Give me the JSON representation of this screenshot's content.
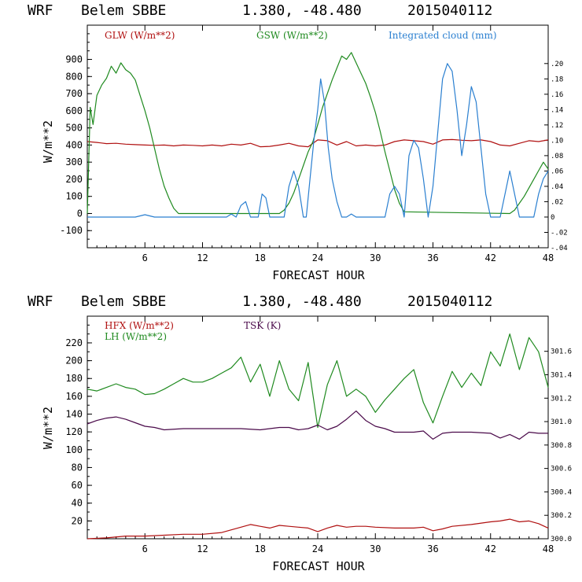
{
  "colors": {
    "red": "#b01010",
    "green": "#1f8a1f",
    "blue": "#2a7fd0",
    "purple": "#4a0a4a",
    "black": "#000000"
  },
  "chart_data": [
    {
      "type": "line",
      "header": {
        "model": "WRF",
        "station": "Belem SBBE",
        "coords": "1.380, -48.480",
        "run": "2015040112"
      },
      "xlabel": "FORECAST HOUR",
      "ylabel": "W/m**2",
      "xlim": [
        0,
        48
      ],
      "ylim": [
        -200,
        1100
      ],
      "y2lim": [
        -0.04,
        0.25
      ],
      "x_ticks": [
        "6",
        "12",
        "18",
        "24",
        "30",
        "36",
        "42",
        "48"
      ],
      "y_ticks": [
        "-100",
        "0",
        "100",
        "200",
        "300",
        "400",
        "500",
        "600",
        "700",
        "800",
        "900"
      ],
      "y2_ticks": [
        "-.04",
        "-.02",
        "0",
        ".02",
        ".04",
        ".06",
        ".08",
        ".10",
        ".12",
        ".14",
        ".16",
        ".18",
        ".20"
      ],
      "series": [
        {
          "name": "GLW (W/m**2)",
          "color": "red",
          "axis": "left",
          "x": [
            0,
            1,
            2,
            3,
            4,
            5,
            6,
            7,
            8,
            9,
            10,
            11,
            12,
            13,
            14,
            15,
            16,
            17,
            18,
            19,
            20,
            21,
            22,
            23,
            24,
            25,
            26,
            27,
            28,
            29,
            30,
            31,
            32,
            33,
            34,
            35,
            36,
            37,
            38,
            39,
            40,
            41,
            42,
            43,
            44,
            45,
            46,
            47,
            48
          ],
          "values": [
            420,
            415,
            408,
            410,
            405,
            402,
            400,
            398,
            400,
            395,
            400,
            398,
            395,
            400,
            395,
            405,
            400,
            410,
            390,
            392,
            400,
            410,
            395,
            390,
            430,
            425,
            400,
            420,
            395,
            400,
            395,
            400,
            420,
            430,
            425,
            420,
            405,
            430,
            432,
            428,
            425,
            430,
            420,
            400,
            395,
            410,
            425,
            420,
            430
          ]
        },
        {
          "name": "GSW (W/m**2)",
          "color": "green",
          "axis": "left",
          "x": [
            0,
            0.3,
            0.6,
            1,
            1.5,
            2,
            2.5,
            3,
            3.5,
            4,
            4.5,
            5,
            5.5,
            6,
            6.5,
            7,
            7.5,
            8,
            8.5,
            9,
            9.5,
            10,
            20,
            20.5,
            21,
            21.5,
            22,
            22.5,
            23,
            23.5,
            24,
            24.5,
            25,
            25.5,
            26,
            26.5,
            27,
            27.5,
            28,
            28.5,
            29,
            29.5,
            30,
            30.5,
            31,
            31.5,
            32,
            32.5,
            33,
            44,
            44.5,
            45,
            45.5,
            46,
            46.5,
            47,
            47.5,
            48
          ],
          "values": [
            0,
            620,
            520,
            690,
            750,
            790,
            860,
            820,
            880,
            840,
            820,
            780,
            690,
            600,
            500,
            380,
            260,
            160,
            90,
            30,
            0,
            0,
            0,
            20,
            60,
            120,
            200,
            280,
            360,
            420,
            520,
            620,
            700,
            780,
            850,
            920,
            900,
            940,
            880,
            820,
            760,
            680,
            590,
            480,
            360,
            250,
            140,
            60,
            10,
            0,
            20,
            60,
            100,
            150,
            200,
            250,
            300,
            260
          ]
        },
        {
          "name": "Integrated cloud (mm)",
          "color": "blue",
          "axis": "right",
          "x": [
            0,
            5,
            6,
            7,
            14.5,
            15,
            15.5,
            16,
            16.5,
            17,
            17.8,
            18.2,
            18.6,
            19,
            20.5,
            21,
            21.5,
            22,
            22.5,
            22.8,
            23.2,
            23.6,
            24,
            24.3,
            24.7,
            25.1,
            25.5,
            26,
            26.5,
            27,
            27.5,
            28,
            28.5,
            31,
            31.5,
            32,
            32.5,
            33,
            33.5,
            34,
            34.5,
            35,
            35.5,
            36,
            36.5,
            37,
            37.5,
            38,
            38.5,
            39,
            39.5,
            40,
            40.5,
            41,
            41.5,
            42,
            43,
            43.5,
            44,
            44.5,
            45,
            46.5,
            47,
            47.5,
            48
          ],
          "values": [
            0,
            0,
            0.003,
            0,
            0,
            0.004,
            0,
            0.015,
            0.02,
            0,
            0,
            0.03,
            0.025,
            0,
            0,
            0.04,
            0.06,
            0.04,
            0,
            0,
            0.05,
            0.1,
            0.14,
            0.18,
            0.15,
            0.09,
            0.05,
            0.02,
            0,
            0,
            0.004,
            0,
            0,
            0,
            0.03,
            0.04,
            0.03,
            0,
            0.08,
            0.1,
            0.09,
            0.05,
            0,
            0.04,
            0.11,
            0.18,
            0.2,
            0.19,
            0.14,
            0.08,
            0.12,
            0.17,
            0.15,
            0.09,
            0.03,
            0,
            0,
            0.03,
            0.06,
            0.03,
            0,
            0,
            0.03,
            0.05,
            0.06
          ]
        }
      ]
    },
    {
      "type": "line",
      "header": {
        "model": "WRF",
        "station": "Belem SBBE",
        "coords": "1.380, -48.480",
        "run": "2015040112"
      },
      "xlabel": "FORECAST HOUR",
      "ylabel": "W/m**2",
      "xlim": [
        0,
        48
      ],
      "ylim": [
        0,
        250
      ],
      "y2lim": [
        300.0,
        301.9
      ],
      "x_ticks": [
        "6",
        "12",
        "18",
        "24",
        "30",
        "36",
        "42",
        "48"
      ],
      "y_ticks": [
        "20",
        "40",
        "60",
        "80",
        "100",
        "120",
        "140",
        "160",
        "180",
        "200",
        "220"
      ],
      "y2_ticks": [
        "300.0",
        "300.2",
        "300.4",
        "300.6",
        "300.8",
        "301.0",
        "301.2",
        "301.4",
        "301.6"
      ],
      "series": [
        {
          "name": "HFX (W/m**2)",
          "color": "red",
          "axis": "left",
          "x": [
            0,
            2,
            4,
            6,
            8,
            10,
            12,
            14,
            15,
            16,
            17,
            18,
            19,
            20,
            21,
            22,
            23,
            24,
            25,
            26,
            27,
            28,
            29,
            30,
            32,
            34,
            35,
            36,
            37,
            38,
            40,
            42,
            43,
            44,
            45,
            46,
            47,
            48
          ],
          "values": [
            0,
            1,
            3,
            3,
            4,
            5,
            5,
            7,
            10,
            13,
            16,
            14,
            12,
            15,
            14,
            13,
            12,
            8,
            12,
            15,
            13,
            14,
            14,
            13,
            12,
            12,
            13,
            9,
            11,
            14,
            16,
            19,
            20,
            22,
            19,
            20,
            17,
            12
          ]
        },
        {
          "name": "LH (W/m**2)",
          "color": "green",
          "axis": "left",
          "x": [
            0,
            1,
            2,
            3,
            4,
            5,
            6,
            7,
            8,
            9,
            10,
            11,
            12,
            13,
            14,
            15,
            16,
            17,
            18,
            19,
            20,
            21,
            22,
            23,
            24,
            25,
            26,
            27,
            28,
            29,
            30,
            31,
            32,
            33,
            34,
            35,
            36,
            37,
            38,
            39,
            40,
            41,
            42,
            43,
            44,
            45,
            46,
            47,
            48
          ],
          "values": [
            168,
            166,
            170,
            174,
            170,
            168,
            162,
            163,
            168,
            174,
            180,
            176,
            176,
            180,
            186,
            192,
            204,
            176,
            196,
            160,
            200,
            168,
            155,
            198,
            125,
            173,
            200,
            160,
            168,
            160,
            142,
            156,
            168,
            180,
            190,
            153,
            130,
            160,
            188,
            170,
            186,
            172,
            210,
            194,
            230,
            190,
            226,
            210,
            170
          ]
        },
        {
          "name": "TSK (K)",
          "color": "purple",
          "axis": "right",
          "x": [
            0,
            1,
            2,
            3,
            4,
            5,
            6,
            7,
            8,
            10,
            12,
            14,
            16,
            18,
            20,
            21,
            22,
            23,
            24,
            25,
            26,
            27,
            28,
            29,
            30,
            31,
            32,
            34,
            35,
            36,
            37,
            38,
            40,
            42,
            43,
            44,
            45,
            46,
            47,
            48
          ],
          "values": [
            300.98,
            301.01,
            301.03,
            301.04,
            301.02,
            300.99,
            300.96,
            300.95,
            300.93,
            300.94,
            300.94,
            300.94,
            300.94,
            300.93,
            300.95,
            300.95,
            300.93,
            300.94,
            300.97,
            300.93,
            300.96,
            301.02,
            301.09,
            301.01,
            300.96,
            300.94,
            300.91,
            300.91,
            300.92,
            300.85,
            300.9,
            300.91,
            300.91,
            300.9,
            300.86,
            300.89,
            300.85,
            300.91,
            300.9,
            300.9
          ]
        }
      ]
    }
  ]
}
